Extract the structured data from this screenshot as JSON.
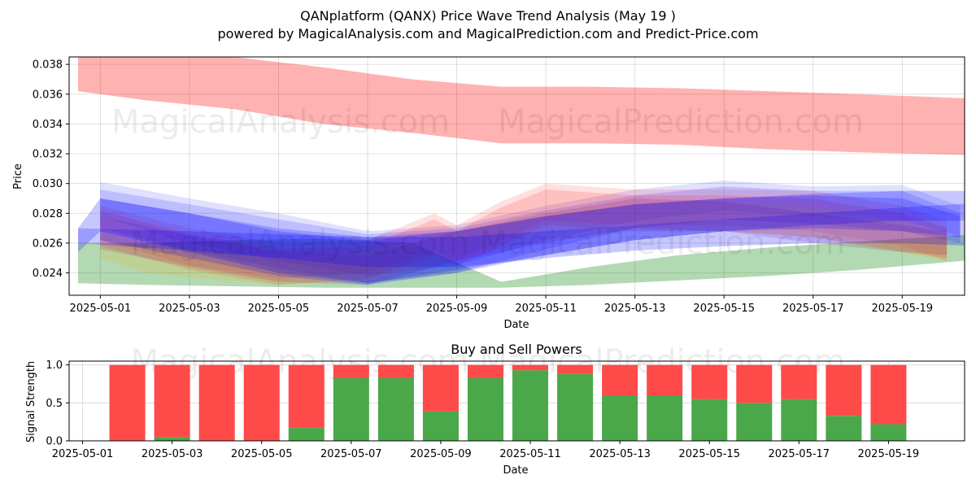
{
  "colors": {
    "red_band": "#ff0000",
    "blue_band": "#0000ff",
    "green_band": "#008000",
    "bar_buy": "#4aa84a",
    "bar_sell": "#ff4a4a"
  },
  "titles": {
    "main": "QANplatform (QANX) Price Wave Trend Analysis (May 19 )",
    "sub": "powered by MagicalAnalysis.com and MagicalPrediction.com and Predict-Price.com"
  },
  "watermarks": {
    "top_left": "MagicalAnalysis.com",
    "top_right": "MagicalPrediction.com",
    "mid": "MagicalAnalysis.com    MagicalPrediction.com",
    "bottom": "MagicalAnalysis.com    MagicalPrediction.com"
  },
  "chart_data": [
    {
      "type": "area",
      "title": "QANplatform (QANX) Price Wave Trend Analysis (May 19 )",
      "xlabel": "Date",
      "ylabel": "Price",
      "xlim": [
        -0.7,
        19.4
      ],
      "ylim": [
        0.0225,
        0.0385
      ],
      "x_ticks": [
        0,
        2,
        4,
        6,
        8,
        10,
        12,
        14,
        16,
        18
      ],
      "x_tick_labels": [
        "2025-05-01",
        "2025-05-03",
        "2025-05-05",
        "2025-05-07",
        "2025-05-09",
        "2025-05-11",
        "2025-05-13",
        "2025-05-15",
        "2025-05-17",
        "2025-05-19"
      ],
      "y_ticks": [
        0.024,
        0.026,
        0.028,
        0.03,
        0.032,
        0.034,
        0.036,
        0.038
      ],
      "y_tick_labels": [
        "0.024",
        "0.026",
        "0.028",
        "0.030",
        "0.032",
        "0.034",
        "0.036",
        "0.038"
      ],
      "grid": true,
      "bands": [
        {
          "name": "red-upper-band",
          "color": "red",
          "opacity": 0.3,
          "x": [
            -0.5,
            1,
            3,
            5,
            7,
            9,
            11,
            13,
            15,
            17,
            19.7
          ],
          "upper": [
            0.0385,
            0.0385,
            0.0385,
            0.0378,
            0.037,
            0.0365,
            0.0365,
            0.0364,
            0.0362,
            0.036,
            0.0357
          ],
          "lower": [
            0.0362,
            0.0356,
            0.035,
            0.034,
            0.0334,
            0.0327,
            0.0327,
            0.0326,
            0.0323,
            0.0321,
            0.0319
          ]
        },
        {
          "name": "green-lower-band",
          "color": "green",
          "opacity": 0.3,
          "x": [
            -0.5,
            1,
            3,
            5,
            7,
            9,
            11,
            13,
            15,
            17,
            19.7
          ],
          "upper": [
            0.026,
            0.026,
            0.0262,
            0.0263,
            0.026,
            0.0234,
            0.0244,
            0.0252,
            0.0257,
            0.0261,
            0.0266
          ],
          "lower": [
            0.0233,
            0.0232,
            0.0231,
            0.023,
            0.023,
            0.023,
            0.0232,
            0.0235,
            0.0238,
            0.0242,
            0.0249
          ]
        },
        {
          "name": "blue-wave-1",
          "color": "blue",
          "opacity": 0.12,
          "x": [
            0,
            2,
            4,
            6,
            8,
            10,
            12,
            14,
            16,
            18,
            19.3
          ],
          "upper": [
            0.0301,
            0.029,
            0.028,
            0.0268,
            0.0272,
            0.0285,
            0.0296,
            0.0302,
            0.0298,
            0.0299,
            0.0285
          ],
          "lower": [
            0.0278,
            0.026,
            0.0248,
            0.0238,
            0.0245,
            0.0262,
            0.0275,
            0.0282,
            0.0278,
            0.0275,
            0.0265
          ]
        },
        {
          "name": "blue-wave-2",
          "color": "blue",
          "opacity": 0.15,
          "x": [
            0,
            2,
            4,
            6,
            8,
            10,
            12,
            14,
            16,
            18,
            19.3
          ],
          "upper": [
            0.0296,
            0.0286,
            0.0276,
            0.0266,
            0.027,
            0.0282,
            0.0292,
            0.0298,
            0.0295,
            0.0295,
            0.028
          ],
          "lower": [
            0.027,
            0.0255,
            0.0243,
            0.0233,
            0.024,
            0.0256,
            0.027,
            0.0276,
            0.0273,
            0.0268,
            0.026
          ]
        },
        {
          "name": "red-wave-1",
          "color": "red",
          "opacity": 0.12,
          "x": [
            0,
            2,
            4,
            6,
            7.5,
            8,
            9,
            10,
            12,
            14,
            16,
            18,
            19
          ],
          "upper": [
            0.0285,
            0.027,
            0.026,
            0.0262,
            0.028,
            0.0272,
            0.0288,
            0.03,
            0.0296,
            0.0296,
            0.0295,
            0.0285,
            0.0275
          ],
          "lower": [
            0.0262,
            0.0245,
            0.0236,
            0.024,
            0.0255,
            0.0248,
            0.0262,
            0.0275,
            0.0272,
            0.0272,
            0.0268,
            0.0258,
            0.0248
          ]
        },
        {
          "name": "red-wave-2",
          "color": "red",
          "opacity": 0.14,
          "x": [
            0,
            2,
            4,
            6,
            7.5,
            8,
            9,
            10,
            12,
            14,
            16,
            18,
            19
          ],
          "upper": [
            0.0282,
            0.0266,
            0.0256,
            0.0258,
            0.0276,
            0.0268,
            0.0284,
            0.0296,
            0.0292,
            0.0292,
            0.029,
            0.028,
            0.027
          ],
          "lower": [
            0.0258,
            0.0242,
            0.0232,
            0.0236,
            0.0252,
            0.0245,
            0.0258,
            0.0272,
            0.0268,
            0.0268,
            0.0264,
            0.0254,
            0.025
          ]
        },
        {
          "name": "orange-wave",
          "color": "orange",
          "opacity": 0.15,
          "x": [
            0,
            1,
            2,
            4,
            6,
            8,
            10,
            12,
            14,
            16,
            18,
            19
          ],
          "upper": [
            0.027,
            0.0258,
            0.0255,
            0.025,
            0.0254,
            0.0268,
            0.028,
            0.0287,
            0.0288,
            0.0285,
            0.0275,
            0.0265
          ],
          "lower": [
            0.025,
            0.024,
            0.0237,
            0.0232,
            0.0235,
            0.025,
            0.0262,
            0.0268,
            0.0268,
            0.0264,
            0.0254,
            0.0248
          ]
        },
        {
          "name": "purple-wave",
          "color": "purple",
          "opacity": 0.15,
          "x": [
            0,
            2,
            4,
            6,
            8,
            10,
            12,
            14,
            16,
            18,
            19
          ],
          "upper": [
            0.0278,
            0.0265,
            0.0254,
            0.0252,
            0.0268,
            0.028,
            0.029,
            0.0288,
            0.028,
            0.0272,
            0.0268
          ],
          "lower": [
            0.0256,
            0.0244,
            0.0234,
            0.0232,
            0.0248,
            0.026,
            0.027,
            0.0268,
            0.026,
            0.0254,
            0.0252
          ]
        },
        {
          "name": "blue-wave-3",
          "color": "blue",
          "opacity": 0.2,
          "x": [
            0,
            2,
            4,
            6,
            8,
            10,
            12,
            14,
            16,
            18,
            19.3
          ],
          "upper": [
            0.029,
            0.028,
            0.027,
            0.0264,
            0.0268,
            0.0278,
            0.0286,
            0.029,
            0.0292,
            0.029,
            0.0278
          ],
          "lower": [
            0.0262,
            0.025,
            0.0238,
            0.0232,
            0.024,
            0.0252,
            0.0262,
            0.0268,
            0.027,
            0.0268,
            0.0264
          ]
        },
        {
          "name": "blue-wave-4",
          "color": "blue",
          "opacity": 0.22,
          "x": [
            -0.5,
            0,
            2,
            4,
            6,
            8,
            10,
            12,
            14,
            16,
            18,
            19.7
          ],
          "upper": [
            0.027,
            0.029,
            0.028,
            0.0268,
            0.0262,
            0.0268,
            0.0278,
            0.0286,
            0.029,
            0.0293,
            0.0295,
            0.0295
          ],
          "lower": [
            0.0254,
            0.0268,
            0.0254,
            0.024,
            0.0233,
            0.0242,
            0.0252,
            0.0262,
            0.0268,
            0.0272,
            0.0275,
            0.0275
          ]
        },
        {
          "name": "blue-wave-5",
          "color": "blue",
          "opacity": 0.22,
          "x": [
            -0.5,
            2,
            4,
            6,
            8,
            10,
            12,
            14,
            16,
            18,
            19.7
          ],
          "upper": [
            0.027,
            0.0268,
            0.0266,
            0.0264,
            0.0264,
            0.0268,
            0.0272,
            0.0276,
            0.028,
            0.0284,
            0.0287
          ],
          "lower": [
            0.026,
            0.0255,
            0.025,
            0.0244,
            0.0244,
            0.025,
            0.0255,
            0.0258,
            0.026,
            0.026,
            0.0258
          ]
        }
      ]
    },
    {
      "type": "bar",
      "title": "Buy and Sell Powers",
      "xlabel": "Date",
      "ylabel": "Signal Strength",
      "xlim": [
        -0.3,
        19.7
      ],
      "ylim": [
        0,
        1.05
      ],
      "x_ticks": [
        0,
        2,
        4,
        6,
        8,
        10,
        12,
        14,
        16,
        18
      ],
      "x_tick_labels": [
        "2025-05-01",
        "2025-05-03",
        "2025-05-05",
        "2025-05-07",
        "2025-05-09",
        "2025-05-11",
        "2025-05-13",
        "2025-05-15",
        "2025-05-17",
        "2025-05-19"
      ],
      "y_ticks": [
        0.0,
        0.5,
        1.0
      ],
      "y_tick_labels": [
        "0.0",
        "0.5",
        "1.0"
      ],
      "x": [
        1,
        2,
        3,
        4,
        5,
        6,
        7,
        8,
        9,
        10,
        11,
        12,
        13,
        14,
        15,
        16,
        17,
        18
      ],
      "series": [
        {
          "name": "buy",
          "values": [
            0.0,
            0.05,
            0.0,
            0.0,
            0.17,
            0.83,
            0.83,
            0.39,
            0.83,
            0.93,
            0.88,
            0.6,
            0.6,
            0.55,
            0.5,
            0.55,
            0.33,
            0.22
          ]
        },
        {
          "name": "sell",
          "values": [
            1.0,
            0.95,
            1.0,
            1.0,
            0.83,
            0.17,
            0.17,
            0.61,
            0.17,
            0.07,
            0.12,
            0.4,
            0.4,
            0.45,
            0.5,
            0.45,
            0.67,
            0.78
          ]
        }
      ]
    }
  ]
}
